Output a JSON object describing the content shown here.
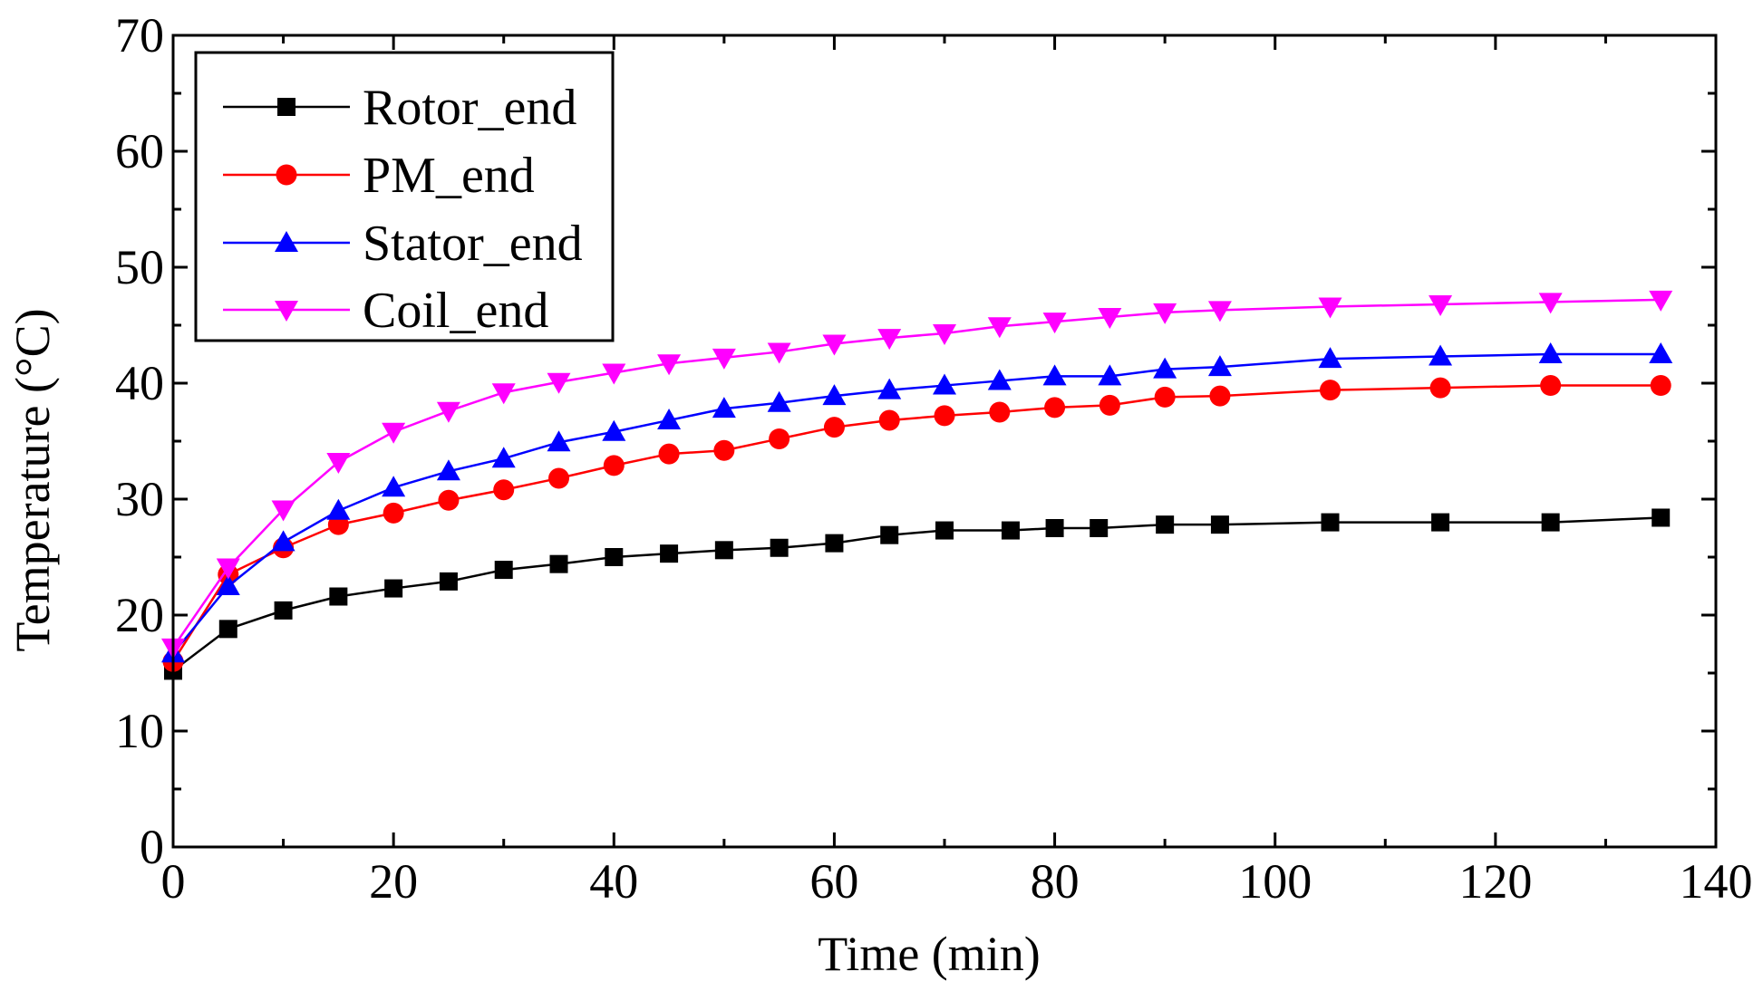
{
  "colors": {
    "axis": "#000000",
    "background": "#ffffff",
    "rotor": "#000000",
    "pm": "#ff0000",
    "stator": "#0000ff",
    "coil": "#ff00ff"
  },
  "chart_data": {
    "type": "line",
    "title": "",
    "xlabel": "Time (min)",
    "ylabel": "Temperature (°C)",
    "xlim": [
      0,
      140
    ],
    "ylim": [
      0,
      70
    ],
    "x_ticks": [
      0,
      20,
      40,
      60,
      80,
      100,
      120,
      140
    ],
    "y_ticks": [
      0,
      10,
      20,
      30,
      40,
      50,
      60,
      70
    ],
    "x_tick_labels": [
      "0",
      "20",
      "40",
      "60",
      "80",
      "100",
      "120",
      "140"
    ],
    "y_tick_labels": [
      "0",
      "10",
      "20",
      "30",
      "40",
      "50",
      "60",
      "70"
    ],
    "grid": false,
    "legend_position": "top-left",
    "series": [
      {
        "name": "Rotor_end",
        "color": "#000000",
        "marker": "square",
        "x": [
          0,
          5,
          10,
          15,
          20,
          25,
          30,
          35,
          40,
          45,
          50,
          55,
          60,
          65,
          70,
          76,
          80,
          84,
          90,
          95,
          105,
          115,
          125,
          135
        ],
        "y": [
          15.2,
          18.8,
          20.4,
          21.6,
          22.3,
          22.9,
          23.9,
          24.4,
          25.0,
          25.3,
          25.6,
          25.8,
          26.2,
          26.9,
          27.3,
          27.3,
          27.5,
          27.5,
          27.8,
          27.8,
          28.0,
          28.0,
          28.0,
          28.4
        ]
      },
      {
        "name": "PM_end",
        "color": "#ff0000",
        "marker": "circle",
        "x": [
          0,
          5,
          10,
          15,
          20,
          25,
          30,
          35,
          40,
          45,
          50,
          55,
          60,
          65,
          70,
          75,
          80,
          85,
          90,
          95,
          105,
          115,
          125,
          135
        ],
        "y": [
          16.0,
          23.5,
          25.8,
          27.8,
          28.8,
          29.9,
          30.8,
          31.8,
          32.9,
          33.9,
          34.2,
          35.2,
          36.2,
          36.8,
          37.2,
          37.5,
          37.9,
          38.1,
          38.8,
          38.9,
          39.4,
          39.6,
          39.8,
          39.8
        ]
      },
      {
        "name": "Stator_end",
        "color": "#0000ff",
        "marker": "triangle-up",
        "x": [
          0,
          5,
          10,
          15,
          20,
          25,
          30,
          35,
          40,
          45,
          50,
          55,
          60,
          65,
          70,
          75,
          80,
          85,
          90,
          95,
          105,
          115,
          125,
          135
        ],
        "y": [
          16.7,
          22.5,
          26.3,
          29.0,
          31.0,
          32.4,
          33.5,
          34.9,
          35.8,
          36.8,
          37.8,
          38.3,
          38.9,
          39.4,
          39.8,
          40.2,
          40.6,
          40.6,
          41.2,
          41.4,
          42.1,
          42.3,
          42.5,
          42.5
        ]
      },
      {
        "name": "Coil_end",
        "color": "#ff00ff",
        "marker": "triangle-down",
        "x": [
          0,
          5,
          10,
          15,
          20,
          25,
          30,
          35,
          40,
          45,
          50,
          55,
          60,
          65,
          70,
          75,
          80,
          85,
          90,
          95,
          105,
          115,
          125,
          135
        ],
        "y": [
          17.2,
          24.1,
          29.1,
          33.2,
          35.8,
          37.6,
          39.2,
          40.1,
          40.9,
          41.7,
          42.2,
          42.7,
          43.4,
          43.9,
          44.3,
          44.9,
          45.3,
          45.7,
          46.1,
          46.3,
          46.6,
          46.8,
          47.0,
          47.2
        ]
      }
    ]
  }
}
